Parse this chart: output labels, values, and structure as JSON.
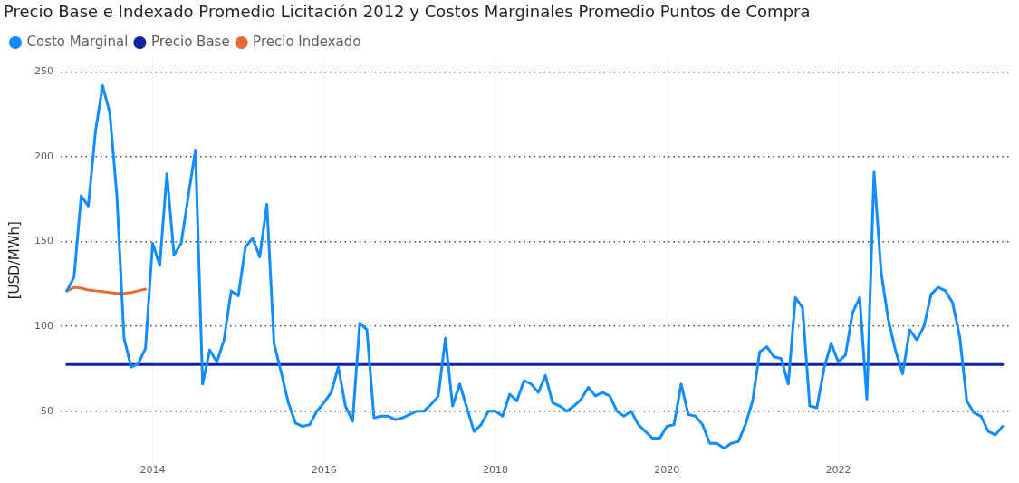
{
  "chart_data": {
    "type": "line",
    "title": "Precio Base e Indexado Promedio Licitación 2012 y Costos Marginales Promedio Puntos de Compra",
    "ylabel": "[USD/MWh]",
    "x": [
      "2013-01",
      "2013-02",
      "2013-03",
      "2013-04",
      "2013-05",
      "2013-06",
      "2013-07",
      "2013-08",
      "2013-09",
      "2013-10",
      "2013-11",
      "2013-12",
      "2014-01",
      "2014-02",
      "2014-03",
      "2014-04",
      "2014-05",
      "2014-06",
      "2014-07",
      "2014-08",
      "2014-09",
      "2014-10",
      "2014-11",
      "2014-12",
      "2015-01",
      "2015-02",
      "2015-03",
      "2015-04",
      "2015-05",
      "2015-06",
      "2015-07",
      "2015-08",
      "2015-09",
      "2015-10",
      "2015-11",
      "2015-12",
      "2016-01",
      "2016-02",
      "2016-03",
      "2016-04",
      "2016-05",
      "2016-06",
      "2016-07",
      "2016-08",
      "2016-09",
      "2016-10",
      "2016-11",
      "2016-12",
      "2017-01",
      "2017-02",
      "2017-03",
      "2017-04",
      "2017-05",
      "2017-06",
      "2017-07",
      "2017-08",
      "2017-09",
      "2017-10",
      "2017-11",
      "2017-12",
      "2018-01",
      "2018-02",
      "2018-03",
      "2018-04",
      "2018-05",
      "2018-06",
      "2018-07",
      "2018-08",
      "2018-09",
      "2018-10",
      "2018-11",
      "2018-12",
      "2019-01",
      "2019-02",
      "2019-03",
      "2019-04",
      "2019-05",
      "2019-06",
      "2019-07",
      "2019-08",
      "2019-09",
      "2019-10",
      "2019-11",
      "2019-12",
      "2020-01",
      "2020-02",
      "2020-03",
      "2020-04",
      "2020-05",
      "2020-06",
      "2020-07",
      "2020-08",
      "2020-09",
      "2020-10",
      "2020-11",
      "2020-12",
      "2021-01",
      "2021-02",
      "2021-03",
      "2021-04",
      "2021-05",
      "2021-06",
      "2021-07",
      "2021-08",
      "2021-09",
      "2021-10",
      "2021-11",
      "2021-12",
      "2022-01",
      "2022-02",
      "2022-03",
      "2022-04",
      "2022-05",
      "2022-06",
      "2022-07",
      "2022-08",
      "2022-09",
      "2022-10",
      "2022-11",
      "2022-12",
      "2023-01",
      "2023-02",
      "2023-03",
      "2023-04",
      "2023-05",
      "2023-06",
      "2023-07",
      "2023-08",
      "2023-09",
      "2023-10",
      "2023-11",
      "2023-12"
    ],
    "series": [
      {
        "name": "Costo Marginal",
        "color": "#118dff",
        "values": [
          121,
          129,
          177,
          171,
          215,
          242,
          226,
          177,
          93,
          76,
          78,
          87,
          149,
          136,
          190,
          142,
          149,
          177,
          204,
          66,
          86,
          79,
          92,
          121,
          118,
          147,
          152,
          141,
          172,
          90,
          73,
          55,
          43,
          41,
          42,
          50,
          55,
          61,
          76,
          53,
          44,
          102,
          98,
          46,
          47,
          47,
          45,
          46,
          48,
          50,
          50,
          54,
          59,
          93,
          53,
          66,
          52,
          38,
          42,
          50,
          50,
          47,
          60,
          56,
          68,
          66,
          61,
          71,
          55,
          53,
          50,
          53,
          57,
          64,
          59,
          61,
          59,
          50,
          47,
          50,
          42,
          38,
          34,
          34,
          41,
          42,
          66,
          48,
          47,
          42,
          31,
          31,
          28,
          31,
          32,
          42,
          56,
          85,
          88,
          82,
          81,
          66,
          117,
          111,
          53,
          52,
          75,
          90,
          79,
          83,
          108,
          117,
          57,
          191,
          132,
          104,
          86,
          72,
          98,
          92,
          100,
          119,
          123,
          121,
          114,
          94,
          56,
          49,
          47,
          38,
          36,
          41
        ]
      },
      {
        "name": "Precio Base",
        "color": "#12239e",
        "x": [
          "2013-01",
          "2023-12"
        ],
        "values": [
          77.5,
          77.5
        ]
      },
      {
        "name": "Precio Indexado",
        "color": "#e66c37",
        "x": [
          "2013-01",
          "2013-02",
          "2013-03",
          "2013-04",
          "2013-05",
          "2013-06",
          "2013-07",
          "2013-08",
          "2013-09",
          "2013-10",
          "2013-11",
          "2013-12"
        ],
        "values": [
          121,
          123,
          122.5,
          121.5,
          121,
          120.5,
          120,
          119.5,
          119.5,
          120,
          121,
          122
        ]
      }
    ],
    "xlim": [
      "2012-12-05",
      "2024-01-10"
    ],
    "xticks": [
      "2014",
      "2016",
      "2018",
      "2020",
      "2022"
    ],
    "ylim": [
      20,
      258
    ],
    "yticks": [
      50,
      100,
      150,
      200,
      250
    ],
    "grid": true,
    "legend": "top left",
    "marker": "none",
    "line_style": "solid"
  }
}
